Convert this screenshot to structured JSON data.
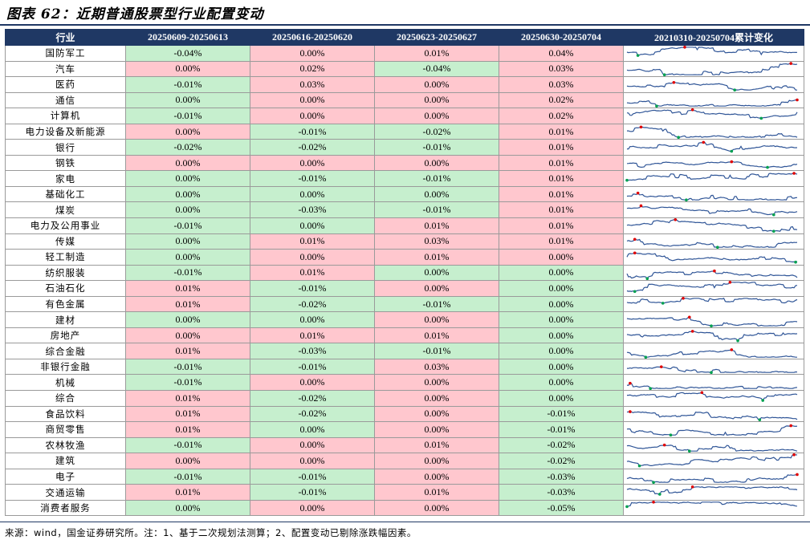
{
  "title": "图表 62：近期普通股票型行业配置变动",
  "headers": [
    "行业",
    "20250609-20250613",
    "20250616-20250620",
    "20250623-20250627",
    "20250630-20250704",
    "20210310-20250704累计变化"
  ],
  "rows": [
    {
      "industry": "国防军工",
      "v": [
        "-0.04%",
        "0.00%",
        "0.01%",
        "0.04%"
      ],
      "c": [
        "n",
        "p",
        "p",
        "p"
      ]
    },
    {
      "industry": "汽车",
      "v": [
        "0.00%",
        "0.02%",
        "-0.04%",
        "0.03%"
      ],
      "c": [
        "p",
        "p",
        "n",
        "p"
      ]
    },
    {
      "industry": "医药",
      "v": [
        "-0.01%",
        "0.03%",
        "0.00%",
        "0.03%"
      ],
      "c": [
        "n",
        "p",
        "p",
        "p"
      ]
    },
    {
      "industry": "通信",
      "v": [
        "0.00%",
        "0.00%",
        "0.00%",
        "0.02%"
      ],
      "c": [
        "n",
        "p",
        "p",
        "p"
      ]
    },
    {
      "industry": "计算机",
      "v": [
        "-0.01%",
        "0.00%",
        "0.00%",
        "0.02%"
      ],
      "c": [
        "n",
        "p",
        "p",
        "p"
      ]
    },
    {
      "industry": "电力设备及新能源",
      "v": [
        "0.00%",
        "-0.01%",
        "-0.02%",
        "0.01%"
      ],
      "c": [
        "p",
        "n",
        "n",
        "p"
      ]
    },
    {
      "industry": "银行",
      "v": [
        "-0.02%",
        "-0.02%",
        "-0.01%",
        "0.01%"
      ],
      "c": [
        "n",
        "n",
        "n",
        "p"
      ]
    },
    {
      "industry": "钢铁",
      "v": [
        "0.00%",
        "0.00%",
        "0.00%",
        "0.01%"
      ],
      "c": [
        "p",
        "p",
        "p",
        "p"
      ]
    },
    {
      "industry": "家电",
      "v": [
        "0.00%",
        "-0.01%",
        "-0.01%",
        "0.01%"
      ],
      "c": [
        "n",
        "n",
        "n",
        "p"
      ]
    },
    {
      "industry": "基础化工",
      "v": [
        "0.00%",
        "0.00%",
        "0.00%",
        "0.01%"
      ],
      "c": [
        "n",
        "n",
        "n",
        "p"
      ]
    },
    {
      "industry": "煤炭",
      "v": [
        "0.00%",
        "-0.03%",
        "-0.01%",
        "0.01%"
      ],
      "c": [
        "n",
        "n",
        "n",
        "p"
      ]
    },
    {
      "industry": "电力及公用事业",
      "v": [
        "-0.01%",
        "0.00%",
        "0.01%",
        "0.01%"
      ],
      "c": [
        "n",
        "n",
        "p",
        "p"
      ]
    },
    {
      "industry": "传媒",
      "v": [
        "0.00%",
        "0.01%",
        "0.03%",
        "0.01%"
      ],
      "c": [
        "n",
        "p",
        "p",
        "p"
      ]
    },
    {
      "industry": "轻工制造",
      "v": [
        "0.00%",
        "0.00%",
        "0.01%",
        "0.00%"
      ],
      "c": [
        "n",
        "p",
        "p",
        "p"
      ]
    },
    {
      "industry": "纺织服装",
      "v": [
        "-0.01%",
        "0.01%",
        "0.00%",
        "0.00%"
      ],
      "c": [
        "n",
        "p",
        "n",
        "n"
      ]
    },
    {
      "industry": "石油石化",
      "v": [
        "0.01%",
        "-0.01%",
        "0.00%",
        "0.00%"
      ],
      "c": [
        "p",
        "n",
        "p",
        "n"
      ]
    },
    {
      "industry": "有色金属",
      "v": [
        "0.01%",
        "-0.02%",
        "-0.01%",
        "0.00%"
      ],
      "c": [
        "p",
        "n",
        "n",
        "n"
      ]
    },
    {
      "industry": "建材",
      "v": [
        "0.00%",
        "0.00%",
        "0.00%",
        "0.00%"
      ],
      "c": [
        "n",
        "n",
        "p",
        "n"
      ]
    },
    {
      "industry": "房地产",
      "v": [
        "0.00%",
        "0.01%",
        "0.01%",
        "0.00%"
      ],
      "c": [
        "p",
        "p",
        "p",
        "n"
      ]
    },
    {
      "industry": "综合金融",
      "v": [
        "0.01%",
        "-0.03%",
        "-0.01%",
        "0.00%"
      ],
      "c": [
        "p",
        "n",
        "n",
        "n"
      ]
    },
    {
      "industry": "非银行金融",
      "v": [
        "-0.01%",
        "-0.01%",
        "0.03%",
        "0.00%"
      ],
      "c": [
        "n",
        "n",
        "p",
        "n"
      ]
    },
    {
      "industry": "机械",
      "v": [
        "-0.01%",
        "0.00%",
        "0.00%",
        "0.00%"
      ],
      "c": [
        "n",
        "p",
        "p",
        "n"
      ]
    },
    {
      "industry": "综合",
      "v": [
        "0.01%",
        "-0.02%",
        "0.00%",
        "0.00%"
      ],
      "c": [
        "p",
        "n",
        "p",
        "n"
      ]
    },
    {
      "industry": "食品饮料",
      "v": [
        "0.01%",
        "-0.02%",
        "0.00%",
        "-0.01%"
      ],
      "c": [
        "p",
        "n",
        "p",
        "n"
      ]
    },
    {
      "industry": "商贸零售",
      "v": [
        "0.01%",
        "0.00%",
        "0.00%",
        "-0.01%"
      ],
      "c": [
        "p",
        "n",
        "p",
        "n"
      ]
    },
    {
      "industry": "农林牧渔",
      "v": [
        "-0.01%",
        "0.00%",
        "0.01%",
        "-0.02%"
      ],
      "c": [
        "n",
        "p",
        "p",
        "n"
      ]
    },
    {
      "industry": "建筑",
      "v": [
        "0.00%",
        "0.00%",
        "0.00%",
        "-0.02%"
      ],
      "c": [
        "p",
        "p",
        "p",
        "n"
      ]
    },
    {
      "industry": "电子",
      "v": [
        "-0.01%",
        "-0.01%",
        "0.00%",
        "-0.03%"
      ],
      "c": [
        "n",
        "n",
        "p",
        "n"
      ]
    },
    {
      "industry": "交通运输",
      "v": [
        "0.01%",
        "-0.01%",
        "0.01%",
        "-0.03%"
      ],
      "c": [
        "p",
        "n",
        "p",
        "n"
      ]
    },
    {
      "industry": "消费者服务",
      "v": [
        "0.00%",
        "0.00%",
        "0.00%",
        "-0.05%"
      ],
      "c": [
        "n",
        "p",
        "p",
        "n"
      ]
    }
  ],
  "colors": {
    "positive": "#ffc7ce",
    "negative": "#c6efce",
    "header": "#1f3864",
    "line": "#2f5597",
    "max_marker": "#e00000",
    "min_marker": "#00a050"
  },
  "note": "来源：wind，国金证券研究所。注：1、基于二次规划法测算；2、配置变动已剔除涨跌幅因素。"
}
